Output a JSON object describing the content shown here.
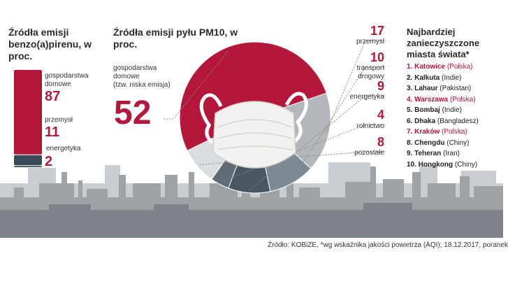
{
  "colors": {
    "accent": "#b5173a",
    "bar_dark": "#3b4a57",
    "skyline": "#9ea3a8",
    "pie": [
      "#b5173a",
      "#b3b7bc",
      "#7d8a96",
      "#4a5864",
      "#36424c",
      "#5f6b75",
      "#d9dce0"
    ]
  },
  "left_panel": {
    "title": "Źródła emisji benzo(a)pirenu, w proc."
  },
  "pie_panel": {
    "title": "Źródła emisji pyłu PM10, w proc.",
    "main_label": "gospodarstwa domowe",
    "main_sublabel": "(tzw. niska emisja)"
  },
  "cities_panel": {
    "title": "Najbardziej zanieczyszczone miasta świata*",
    "cities": [
      {
        "rank": "1.",
        "name": "Katowice",
        "country": "(Polska)",
        "highlight": true
      },
      {
        "rank": "2.",
        "name": "Kalkuta",
        "country": "(Indie)",
        "highlight": false
      },
      {
        "rank": "3.",
        "name": "Lahaur",
        "country": "(Pakistan)",
        "highlight": false
      },
      {
        "rank": "4.",
        "name": "Warszawa",
        "country": "(Polska)",
        "highlight": true
      },
      {
        "rank": "5.",
        "name": "Bombaj",
        "country": "(Indie)",
        "highlight": false
      },
      {
        "rank": "6.",
        "name": "Dhaka",
        "country": "(Bangladesz)",
        "highlight": false
      },
      {
        "rank": "7.",
        "name": "Kraków",
        "country": "(Polska)",
        "highlight": true
      },
      {
        "rank": "8.",
        "name": "Chengdu",
        "country": "(Chiny)",
        "highlight": false
      },
      {
        "rank": "9.",
        "name": "Teheran",
        "country": "(Iran)",
        "highlight": false
      },
      {
        "rank": "10.",
        "name": "Hongkong",
        "country": "(Chiny)",
        "highlight": false
      }
    ]
  },
  "footer": "Źródło: KOBiZE, *wg wskaźnika jakości powietrza (AQI); 18.12.2017, poranek",
  "chart_data": [
    {
      "type": "bar",
      "title": "Źródła emisji benzo(a)pirenu, w proc.",
      "stacked": true,
      "categories": [
        "gospodarstwa domowe",
        "przemysł",
        "energetyka"
      ],
      "values": [
        87,
        11,
        2
      ]
    },
    {
      "type": "pie",
      "title": "Źródła emisji pyłu PM10, w proc.",
      "categories": [
        "gospodarstwa domowe",
        "przemysł",
        "transport drogowy",
        "energetyka",
        "rolnictwo",
        "pozostałe"
      ],
      "values": [
        52,
        17,
        10,
        9,
        4,
        8
      ]
    }
  ]
}
